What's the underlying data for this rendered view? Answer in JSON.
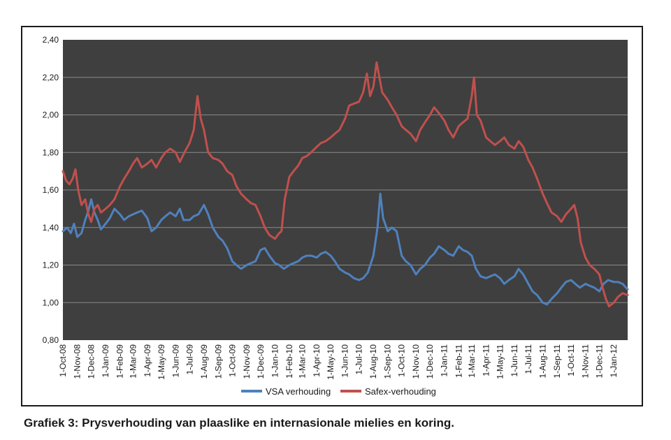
{
  "caption": "Grafiek 3: Prysverhouding van plaaslike en internasionale mielies en koring.",
  "chart_data": {
    "type": "line",
    "title": "",
    "xlabel": "",
    "ylabel": "",
    "ylim": [
      0.8,
      2.4
    ],
    "yticks": [
      "0,80",
      "1,00",
      "1,20",
      "1,40",
      "1,60",
      "1,80",
      "2,00",
      "2,20",
      "2,40"
    ],
    "xlim": [
      "2008-10-01",
      "2012-01-31"
    ],
    "xticks": [
      "1-Oct-08",
      "1-Nov-08",
      "1-Dec-08",
      "1-Jan-09",
      "1-Feb-09",
      "1-Mar-09",
      "1-Apr-09",
      "1-May-09",
      "1-Jun-09",
      "1-Jul-09",
      "1-Aug-09",
      "1-Sep-09",
      "1-Oct-09",
      "1-Nov-09",
      "1-Dec-09",
      "1-Jan-10",
      "1-Feb-10",
      "1-Mar-10",
      "1-Apr-10",
      "1-May-10",
      "1-Jun-10",
      "1-Jul-10",
      "1-Aug-10",
      "1-Sep-10",
      "1-Oct-10",
      "1-Nov-10",
      "1-Dec-10",
      "1-Jan-11",
      "1-Feb-11",
      "1-Mar-11",
      "1-Apr-11",
      "1-May-11",
      "1-Jun-11",
      "1-Jul-11",
      "1-Aug-11",
      "1-Sep-11",
      "1-Oct-11",
      "1-Nov-11",
      "1-Dec-11",
      "1-Jan-12"
    ],
    "grid": true,
    "plot_background": "#3f3f3f",
    "gridline_color": "#8a8a8a",
    "legend_position": "bottom",
    "series": [
      {
        "name": "VSA verhouding",
        "color": "#4f81bd",
        "points": [
          [
            "2008-10-01",
            1.38
          ],
          [
            "2008-10-10",
            1.4
          ],
          [
            "2008-10-18",
            1.37
          ],
          [
            "2008-10-25",
            1.42
          ],
          [
            "2008-11-01",
            1.35
          ],
          [
            "2008-11-10",
            1.37
          ],
          [
            "2008-11-18",
            1.44
          ],
          [
            "2008-11-25",
            1.49
          ],
          [
            "2008-12-01",
            1.55
          ],
          [
            "2008-12-08",
            1.48
          ],
          [
            "2008-12-15",
            1.44
          ],
          [
            "2008-12-22",
            1.39
          ],
          [
            "2009-01-01",
            1.42
          ],
          [
            "2009-01-10",
            1.45
          ],
          [
            "2009-01-20",
            1.5
          ],
          [
            "2009-02-01",
            1.47
          ],
          [
            "2009-02-10",
            1.44
          ],
          [
            "2009-02-20",
            1.46
          ],
          [
            "2009-03-01",
            1.47
          ],
          [
            "2009-03-10",
            1.48
          ],
          [
            "2009-03-20",
            1.49
          ],
          [
            "2009-04-01",
            1.45
          ],
          [
            "2009-04-10",
            1.38
          ],
          [
            "2009-04-20",
            1.4
          ],
          [
            "2009-05-01",
            1.44
          ],
          [
            "2009-05-10",
            1.46
          ],
          [
            "2009-05-20",
            1.48
          ],
          [
            "2009-06-01",
            1.46
          ],
          [
            "2009-06-10",
            1.5
          ],
          [
            "2009-06-18",
            1.44
          ],
          [
            "2009-07-01",
            1.44
          ],
          [
            "2009-07-10",
            1.46
          ],
          [
            "2009-07-20",
            1.47
          ],
          [
            "2009-08-01",
            1.52
          ],
          [
            "2009-08-10",
            1.47
          ],
          [
            "2009-08-20",
            1.4
          ],
          [
            "2009-09-01",
            1.35
          ],
          [
            "2009-09-10",
            1.33
          ],
          [
            "2009-09-20",
            1.29
          ],
          [
            "2009-10-01",
            1.22
          ],
          [
            "2009-10-10",
            1.2
          ],
          [
            "2009-10-20",
            1.18
          ],
          [
            "2009-11-01",
            1.2
          ],
          [
            "2009-11-10",
            1.21
          ],
          [
            "2009-11-20",
            1.22
          ],
          [
            "2009-12-01",
            1.28
          ],
          [
            "2009-12-10",
            1.29
          ],
          [
            "2009-12-20",
            1.25
          ],
          [
            "2010-01-01",
            1.21
          ],
          [
            "2010-01-10",
            1.2
          ],
          [
            "2010-01-20",
            1.18
          ],
          [
            "2010-02-01",
            1.2
          ],
          [
            "2010-02-10",
            1.21
          ],
          [
            "2010-02-20",
            1.22
          ],
          [
            "2010-03-01",
            1.24
          ],
          [
            "2010-03-10",
            1.25
          ],
          [
            "2010-03-20",
            1.25
          ],
          [
            "2010-04-01",
            1.24
          ],
          [
            "2010-04-10",
            1.26
          ],
          [
            "2010-04-20",
            1.27
          ],
          [
            "2010-05-01",
            1.25
          ],
          [
            "2010-05-10",
            1.22
          ],
          [
            "2010-05-20",
            1.18
          ],
          [
            "2010-06-01",
            1.16
          ],
          [
            "2010-06-10",
            1.15
          ],
          [
            "2010-06-20",
            1.13
          ],
          [
            "2010-07-01",
            1.12
          ],
          [
            "2010-07-10",
            1.13
          ],
          [
            "2010-07-20",
            1.16
          ],
          [
            "2010-08-01",
            1.25
          ],
          [
            "2010-08-10",
            1.4
          ],
          [
            "2010-08-16",
            1.58
          ],
          [
            "2010-08-22",
            1.45
          ],
          [
            "2010-09-01",
            1.38
          ],
          [
            "2010-09-10",
            1.4
          ],
          [
            "2010-09-20",
            1.38
          ],
          [
            "2010-10-01",
            1.25
          ],
          [
            "2010-10-10",
            1.22
          ],
          [
            "2010-10-20",
            1.2
          ],
          [
            "2010-11-01",
            1.15
          ],
          [
            "2010-11-10",
            1.18
          ],
          [
            "2010-11-20",
            1.2
          ],
          [
            "2010-12-01",
            1.24
          ],
          [
            "2010-12-10",
            1.26
          ],
          [
            "2010-12-20",
            1.3
          ],
          [
            "2011-01-01",
            1.28
          ],
          [
            "2011-01-10",
            1.26
          ],
          [
            "2011-01-20",
            1.25
          ],
          [
            "2011-02-01",
            1.3
          ],
          [
            "2011-02-10",
            1.28
          ],
          [
            "2011-02-20",
            1.27
          ],
          [
            "2011-03-01",
            1.25
          ],
          [
            "2011-03-10",
            1.18
          ],
          [
            "2011-03-20",
            1.14
          ],
          [
            "2011-04-01",
            1.13
          ],
          [
            "2011-04-10",
            1.14
          ],
          [
            "2011-04-20",
            1.15
          ],
          [
            "2011-05-01",
            1.13
          ],
          [
            "2011-05-10",
            1.1
          ],
          [
            "2011-05-20",
            1.12
          ],
          [
            "2011-06-01",
            1.14
          ],
          [
            "2011-06-10",
            1.18
          ],
          [
            "2011-06-20",
            1.15
          ],
          [
            "2011-07-01",
            1.1
          ],
          [
            "2011-07-10",
            1.06
          ],
          [
            "2011-07-20",
            1.04
          ],
          [
            "2011-08-01",
            1.0
          ],
          [
            "2011-08-10",
            0.99
          ],
          [
            "2011-08-20",
            1.02
          ],
          [
            "2011-09-01",
            1.05
          ],
          [
            "2011-09-10",
            1.08
          ],
          [
            "2011-09-20",
            1.11
          ],
          [
            "2011-10-01",
            1.12
          ],
          [
            "2011-10-10",
            1.1
          ],
          [
            "2011-10-20",
            1.08
          ],
          [
            "2011-11-01",
            1.1
          ],
          [
            "2011-11-10",
            1.09
          ],
          [
            "2011-11-20",
            1.08
          ],
          [
            "2011-12-01",
            1.06
          ],
          [
            "2011-12-10",
            1.1
          ],
          [
            "2011-12-20",
            1.12
          ],
          [
            "2012-01-01",
            1.11
          ],
          [
            "2012-01-10",
            1.11
          ],
          [
            "2012-01-20",
            1.1
          ],
          [
            "2012-01-31",
            1.07
          ]
        ]
      },
      {
        "name": "Safex-verhouding",
        "color": "#c0504d",
        "points": [
          [
            "2008-10-01",
            1.7
          ],
          [
            "2008-10-08",
            1.65
          ],
          [
            "2008-10-15",
            1.63
          ],
          [
            "2008-10-22",
            1.66
          ],
          [
            "2008-10-28",
            1.71
          ],
          [
            "2008-11-03",
            1.6
          ],
          [
            "2008-11-10",
            1.52
          ],
          [
            "2008-11-18",
            1.55
          ],
          [
            "2008-11-25",
            1.47
          ],
          [
            "2008-12-01",
            1.43
          ],
          [
            "2008-12-08",
            1.5
          ],
          [
            "2008-12-15",
            1.52
          ],
          [
            "2008-12-22",
            1.48
          ],
          [
            "2009-01-01",
            1.5
          ],
          [
            "2009-01-10",
            1.52
          ],
          [
            "2009-01-20",
            1.55
          ],
          [
            "2009-02-01",
            1.62
          ],
          [
            "2009-02-10",
            1.66
          ],
          [
            "2009-02-20",
            1.7
          ],
          [
            "2009-03-01",
            1.74
          ],
          [
            "2009-03-10",
            1.77
          ],
          [
            "2009-03-20",
            1.72
          ],
          [
            "2009-04-01",
            1.74
          ],
          [
            "2009-04-10",
            1.76
          ],
          [
            "2009-04-20",
            1.72
          ],
          [
            "2009-05-01",
            1.77
          ],
          [
            "2009-05-10",
            1.8
          ],
          [
            "2009-05-20",
            1.82
          ],
          [
            "2009-06-01",
            1.8
          ],
          [
            "2009-06-10",
            1.75
          ],
          [
            "2009-06-20",
            1.8
          ],
          [
            "2009-07-01",
            1.85
          ],
          [
            "2009-07-10",
            1.92
          ],
          [
            "2009-07-18",
            2.1
          ],
          [
            "2009-07-25",
            1.98
          ],
          [
            "2009-08-01",
            1.92
          ],
          [
            "2009-08-10",
            1.8
          ],
          [
            "2009-08-20",
            1.77
          ],
          [
            "2009-09-01",
            1.76
          ],
          [
            "2009-09-10",
            1.74
          ],
          [
            "2009-09-20",
            1.7
          ],
          [
            "2009-10-01",
            1.68
          ],
          [
            "2009-10-10",
            1.62
          ],
          [
            "2009-10-20",
            1.58
          ],
          [
            "2009-11-01",
            1.55
          ],
          [
            "2009-11-10",
            1.53
          ],
          [
            "2009-11-20",
            1.52
          ],
          [
            "2009-12-01",
            1.46
          ],
          [
            "2009-12-10",
            1.4
          ],
          [
            "2009-12-20",
            1.36
          ],
          [
            "2010-01-01",
            1.34
          ],
          [
            "2010-01-10",
            1.37
          ],
          [
            "2010-01-15",
            1.38
          ],
          [
            "2010-01-22",
            1.55
          ],
          [
            "2010-02-01",
            1.67
          ],
          [
            "2010-02-10",
            1.7
          ],
          [
            "2010-02-20",
            1.73
          ],
          [
            "2010-03-01",
            1.77
          ],
          [
            "2010-03-10",
            1.78
          ],
          [
            "2010-03-20",
            1.8
          ],
          [
            "2010-04-01",
            1.83
          ],
          [
            "2010-04-10",
            1.85
          ],
          [
            "2010-04-20",
            1.86
          ],
          [
            "2010-05-01",
            1.88
          ],
          [
            "2010-05-10",
            1.9
          ],
          [
            "2010-05-20",
            1.92
          ],
          [
            "2010-06-01",
            1.98
          ],
          [
            "2010-06-10",
            2.05
          ],
          [
            "2010-06-20",
            2.06
          ],
          [
            "2010-07-01",
            2.07
          ],
          [
            "2010-07-10",
            2.12
          ],
          [
            "2010-07-18",
            2.22
          ],
          [
            "2010-07-25",
            2.1
          ],
          [
            "2010-08-01",
            2.15
          ],
          [
            "2010-08-08",
            2.28
          ],
          [
            "2010-08-14",
            2.2
          ],
          [
            "2010-08-20",
            2.12
          ],
          [
            "2010-09-01",
            2.08
          ],
          [
            "2010-09-10",
            2.04
          ],
          [
            "2010-09-20",
            2.0
          ],
          [
            "2010-10-01",
            1.94
          ],
          [
            "2010-10-10",
            1.92
          ],
          [
            "2010-10-20",
            1.9
          ],
          [
            "2010-11-01",
            1.86
          ],
          [
            "2010-11-10",
            1.92
          ],
          [
            "2010-11-20",
            1.96
          ],
          [
            "2010-12-01",
            2.0
          ],
          [
            "2010-12-10",
            2.04
          ],
          [
            "2010-12-20",
            2.01
          ],
          [
            "2011-01-01",
            1.97
          ],
          [
            "2011-01-10",
            1.92
          ],
          [
            "2011-01-20",
            1.88
          ],
          [
            "2011-02-01",
            1.94
          ],
          [
            "2011-02-10",
            1.96
          ],
          [
            "2011-02-20",
            1.98
          ],
          [
            "2011-03-01",
            2.1
          ],
          [
            "2011-03-06",
            2.2
          ],
          [
            "2011-03-12",
            2.0
          ],
          [
            "2011-03-20",
            1.97
          ],
          [
            "2011-04-01",
            1.88
          ],
          [
            "2011-04-10",
            1.86
          ],
          [
            "2011-04-20",
            1.84
          ],
          [
            "2011-05-01",
            1.86
          ],
          [
            "2011-05-10",
            1.88
          ],
          [
            "2011-05-20",
            1.84
          ],
          [
            "2011-06-01",
            1.82
          ],
          [
            "2011-06-10",
            1.86
          ],
          [
            "2011-06-20",
            1.83
          ],
          [
            "2011-07-01",
            1.76
          ],
          [
            "2011-07-10",
            1.72
          ],
          [
            "2011-07-20",
            1.66
          ],
          [
            "2011-08-01",
            1.58
          ],
          [
            "2011-08-10",
            1.53
          ],
          [
            "2011-08-20",
            1.48
          ],
          [
            "2011-09-01",
            1.46
          ],
          [
            "2011-09-10",
            1.43
          ],
          [
            "2011-09-20",
            1.47
          ],
          [
            "2011-10-01",
            1.5
          ],
          [
            "2011-10-08",
            1.52
          ],
          [
            "2011-10-15",
            1.45
          ],
          [
            "2011-10-22",
            1.32
          ],
          [
            "2011-11-01",
            1.24
          ],
          [
            "2011-11-10",
            1.2
          ],
          [
            "2011-11-20",
            1.18
          ],
          [
            "2011-12-01",
            1.15
          ],
          [
            "2011-12-08",
            1.08
          ],
          [
            "2011-12-15",
            1.02
          ],
          [
            "2011-12-22",
            0.98
          ],
          [
            "2012-01-01",
            1.0
          ],
          [
            "2012-01-10",
            1.03
          ],
          [
            "2012-01-20",
            1.05
          ],
          [
            "2012-01-31",
            1.04
          ]
        ]
      }
    ]
  }
}
